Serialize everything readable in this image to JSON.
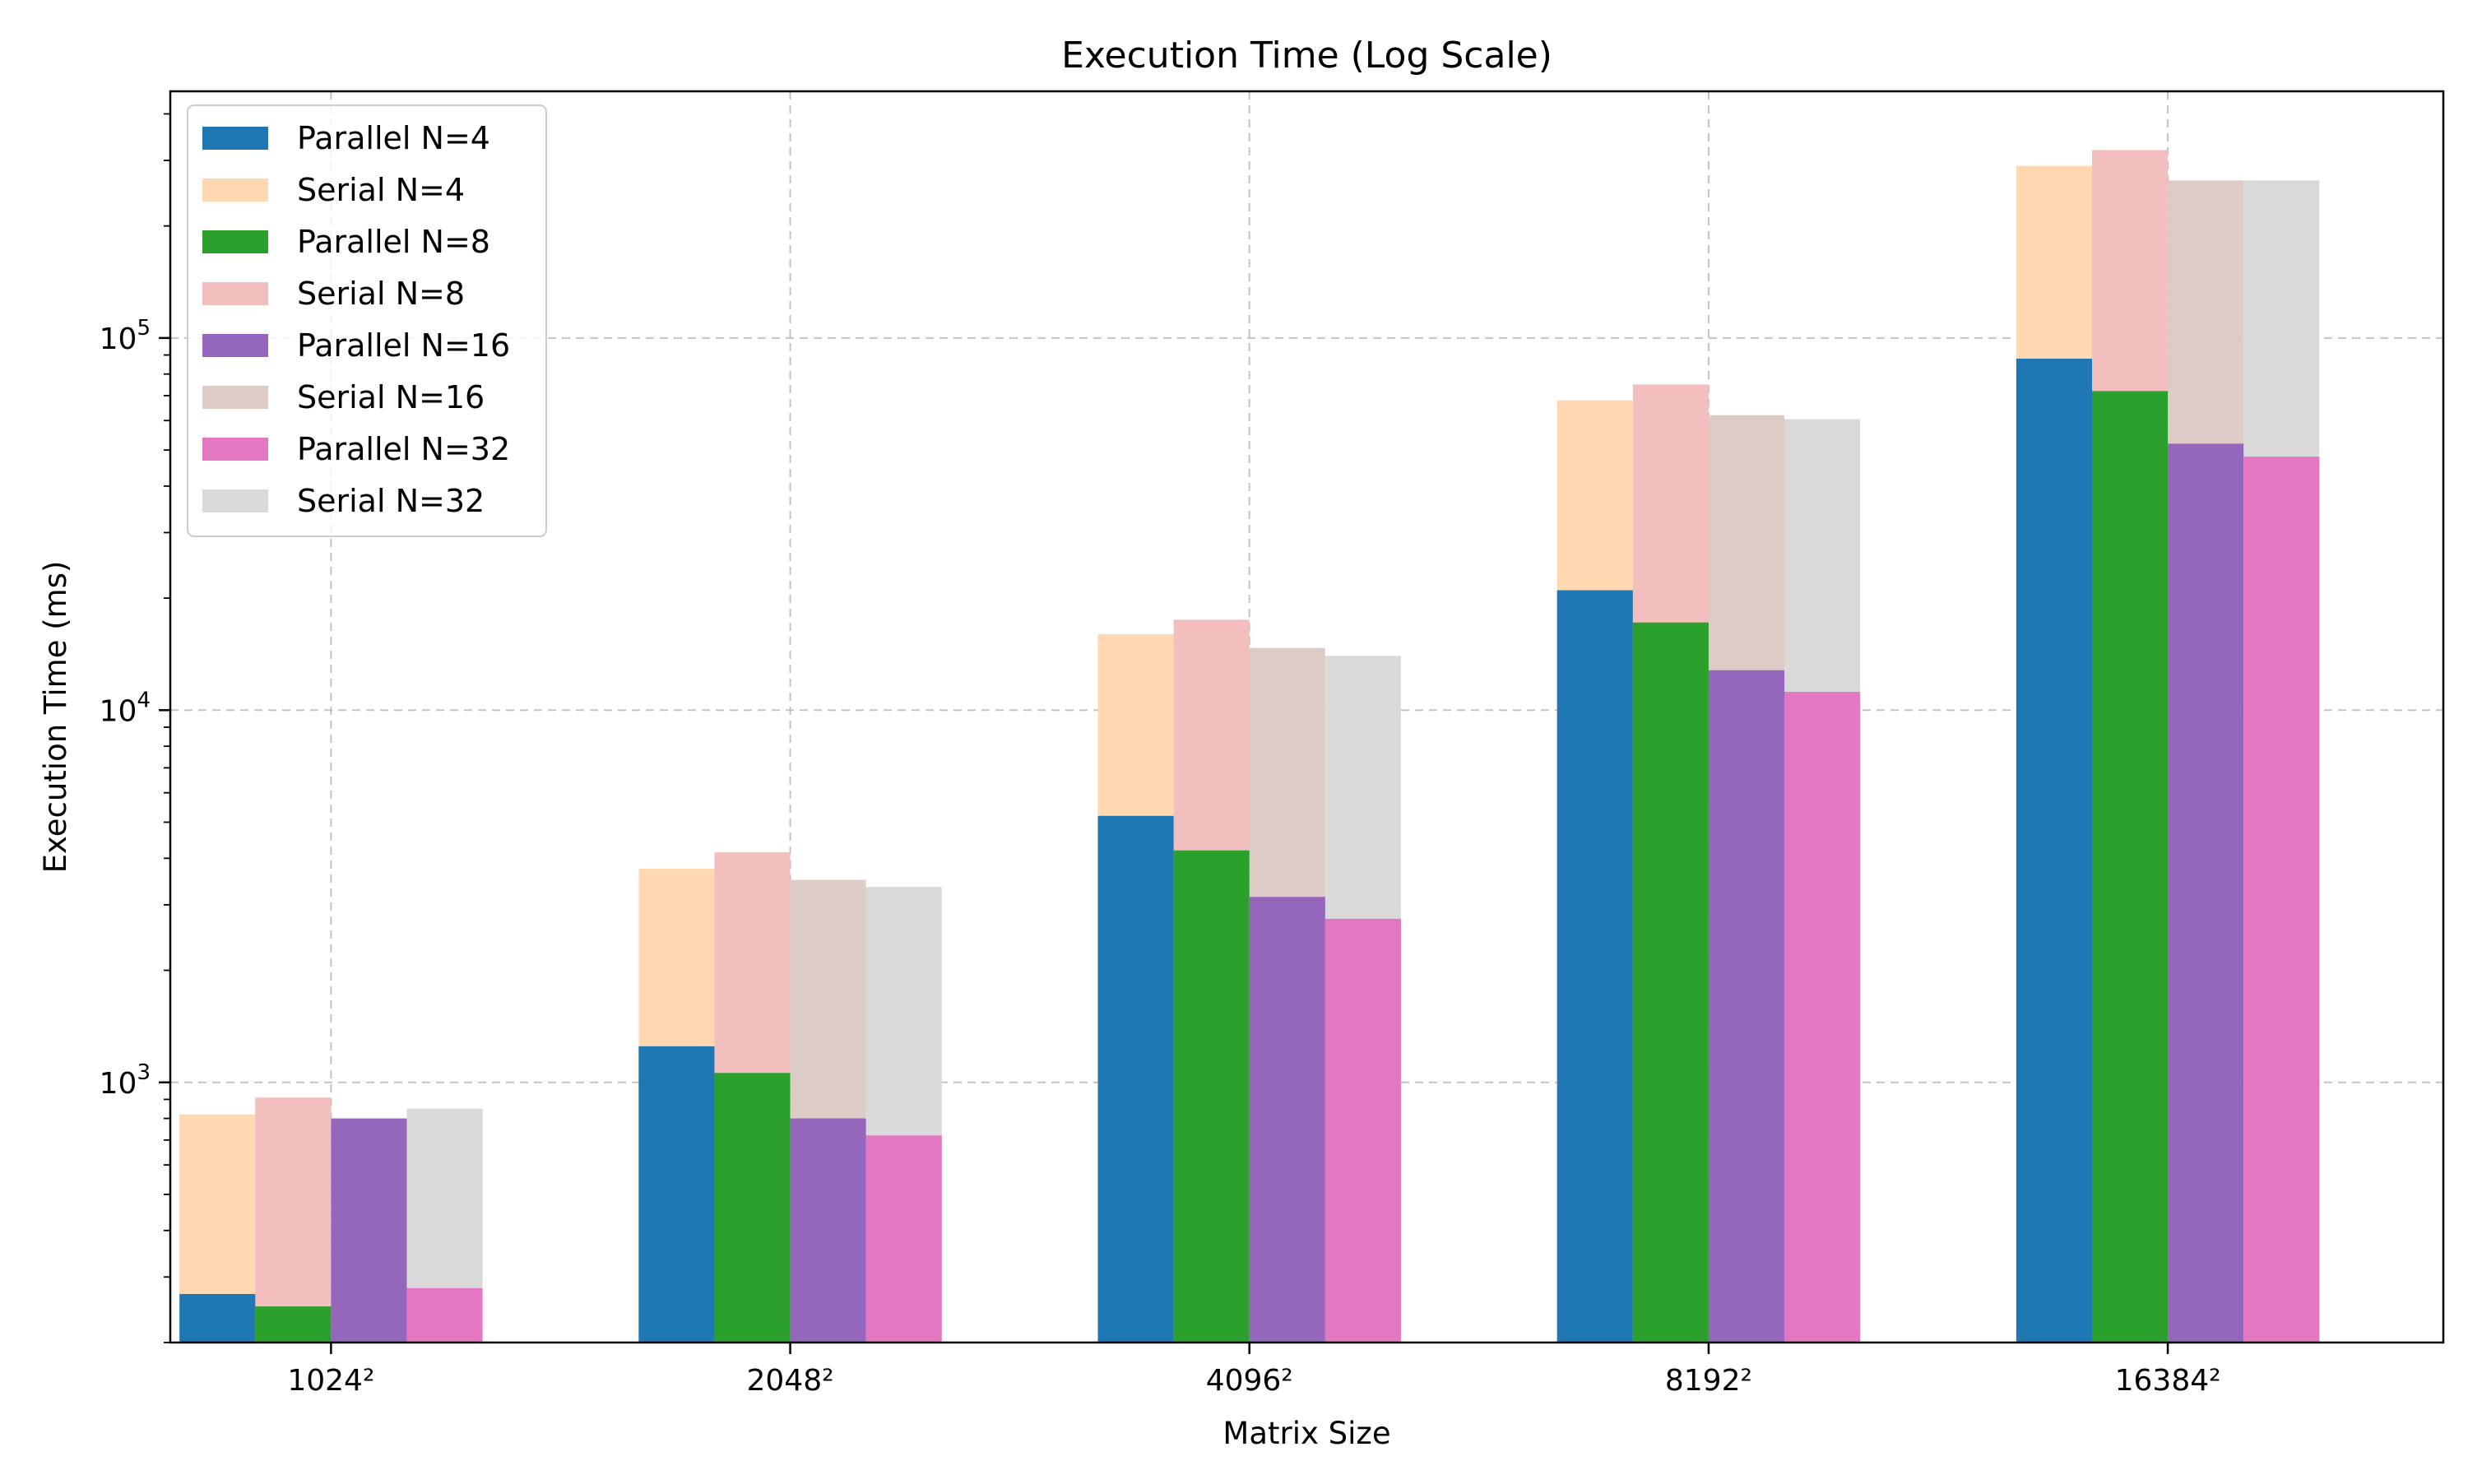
{
  "chart_data": {
    "type": "bar",
    "title": "Execution Time (Log Scale)",
    "xlabel": "Matrix Size",
    "ylabel": "Execution Time (ms)",
    "y_scale": "log",
    "ylim": [
      200,
      460000
    ],
    "y_ticks": [
      {
        "value": 1000,
        "base": "10",
        "exp": "3"
      },
      {
        "value": 10000,
        "base": "10",
        "exp": "4"
      },
      {
        "value": 100000,
        "base": "10",
        "exp": "5"
      }
    ],
    "grid": true,
    "legend_position": "top-left",
    "categories": [
      "1024²",
      "2048²",
      "4096²",
      "8192²",
      "16384²"
    ],
    "series": [
      {
        "name": "Parallel N=4",
        "kind": "parallel",
        "group": 0,
        "color": "#1f77b4",
        "values": [
          270,
          1250,
          5200,
          21000,
          88000
        ]
      },
      {
        "name": "Serial N=4",
        "kind": "serial",
        "group": 0,
        "color": "#ffd8b1",
        "values": [
          820,
          3750,
          16000,
          68000,
          290000
        ]
      },
      {
        "name": "Parallel N=8",
        "kind": "parallel",
        "group": 1,
        "color": "#2ca02c",
        "values": [
          250,
          1060,
          4200,
          17200,
          72000
        ]
      },
      {
        "name": "Serial N=8",
        "kind": "serial",
        "group": 1,
        "color": "#f2bebe",
        "values": [
          910,
          4150,
          17500,
          75000,
          320000
        ]
      },
      {
        "name": "Parallel N=16",
        "kind": "parallel",
        "group": 2,
        "color": "#9467bd",
        "values": [
          800,
          800,
          3150,
          12800,
          52000
        ]
      },
      {
        "name": "Serial N=16",
        "kind": "serial",
        "group": 2,
        "color": "#dccbc6",
        "values": [
          775,
          3500,
          14700,
          62000,
          265000
        ]
      },
      {
        "name": "Parallel N=32",
        "kind": "parallel",
        "group": 3,
        "color": "#e377c2",
        "values": [
          280,
          720,
          2750,
          11200,
          48000
        ]
      },
      {
        "name": "Serial N=32",
        "kind": "serial",
        "group": 3,
        "color": "#d9d9d9",
        "values": [
          850,
          3350,
          14000,
          60500,
          265000
        ]
      }
    ]
  }
}
